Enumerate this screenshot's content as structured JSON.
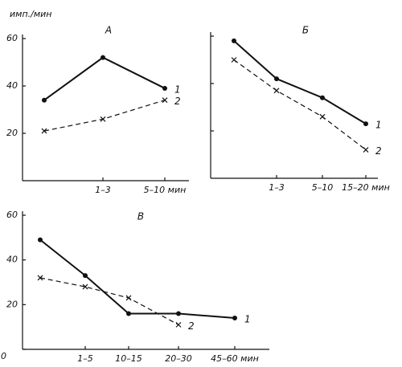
{
  "chart_data": [
    {
      "type": "line",
      "title": "А",
      "ylabel": "имп./мин",
      "categories": [
        null,
        "1–3",
        "5–10 мин"
      ],
      "series": [
        {
          "name": "1",
          "color": "#111",
          "dash": false,
          "marker": "dot",
          "values": [
            34,
            52,
            39
          ]
        },
        {
          "name": "2",
          "color": "#111",
          "dash": true,
          "marker": "x",
          "values": [
            21,
            26,
            34
          ]
        }
      ],
      "ylim": [
        0,
        60
      ],
      "yticks": [
        20,
        40,
        60
      ],
      "show_ytick_labels": true
    },
    {
      "type": "line",
      "title": "Б",
      "categories": [
        null,
        "1–3",
        "5–10",
        "15–20 мин"
      ],
      "series": [
        {
          "name": "1",
          "color": "#111",
          "dash": false,
          "marker": "dot",
          "values": [
            58,
            42,
            34,
            23
          ]
        },
        {
          "name": "2",
          "color": "#111",
          "dash": true,
          "marker": "x",
          "values": [
            50,
            37,
            26,
            12
          ]
        }
      ],
      "ylim": [
        0,
        60
      ],
      "yticks": [
        20,
        40,
        60
      ],
      "show_ytick_labels": false
    },
    {
      "type": "line",
      "title": "В",
      "categories": [
        null,
        "1–5",
        "10–15",
        "20–30",
        "45–60 мин"
      ],
      "series": [
        {
          "name": "1",
          "color": "#111",
          "dash": false,
          "marker": "dot",
          "values": [
            49,
            33,
            16,
            16,
            14
          ]
        },
        {
          "name": "2",
          "color": "#111",
          "dash": true,
          "marker": "x",
          "values": [
            32,
            28,
            23,
            11,
            null
          ]
        }
      ],
      "ylim": [
        0,
        60
      ],
      "yticks": [
        0,
        20,
        40,
        60
      ],
      "show_ytick_labels": true
    }
  ]
}
